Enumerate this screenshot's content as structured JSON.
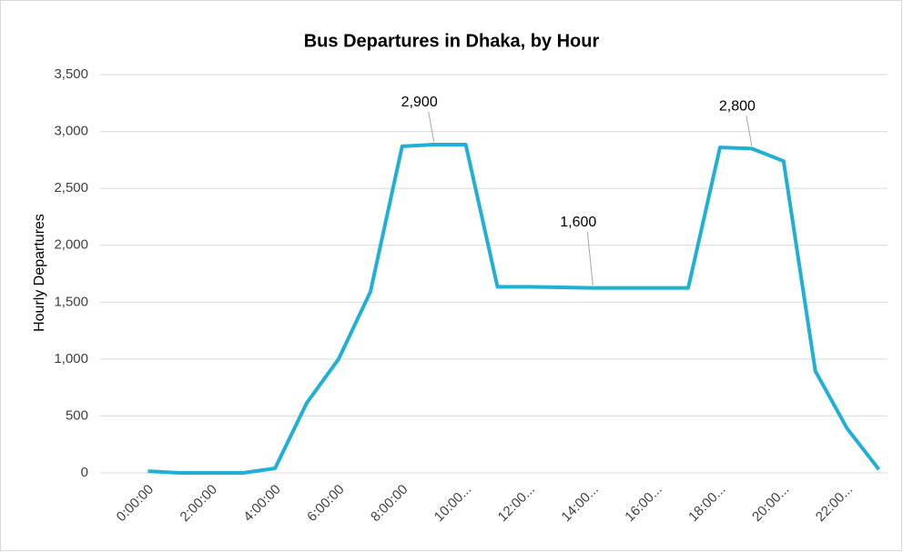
{
  "chart_data": {
    "type": "line",
    "title": "Bus Departures in Dhaka, by Hour",
    "y_label": "Hourly Departures",
    "categories": [
      "0:00:00",
      null,
      "2:00:00",
      null,
      "4:00:00",
      null,
      "6:00:00",
      null,
      "8:00:00",
      null,
      "10:00...",
      null,
      "12:00...",
      null,
      "14:00...",
      null,
      "16:00...",
      null,
      "18:00...",
      null,
      "20:00...",
      null,
      "22:00...",
      null
    ],
    "values": [
      15,
      0,
      0,
      0,
      40,
      615,
      1000,
      1590,
      2870,
      2885,
      2885,
      1635,
      1635,
      1630,
      1625,
      1625,
      1625,
      1625,
      2860,
      2850,
      2740,
      895,
      390,
      30
    ],
    "color": "#1fb0d8",
    "ylim": [
      0,
      3500
    ],
    "yticks": [
      0,
      {
        "value": 500,
        "label": "500"
      },
      {
        "value": 1000,
        "label": "1,000"
      },
      {
        "value": 1500,
        "label": "1,500"
      },
      {
        "value": 2000,
        "label": "2,000"
      },
      {
        "value": 2500,
        "label": "2,500"
      },
      {
        "value": 3000,
        "label": "3,000"
      },
      {
        "value": 3500,
        "label": "3,500"
      }
    ],
    "grid": true,
    "annotations": [
      {
        "label": "2,900",
        "index": 9
      },
      {
        "label": "1,600",
        "index": 14
      },
      {
        "label": "2,800",
        "index": 19
      }
    ]
  }
}
